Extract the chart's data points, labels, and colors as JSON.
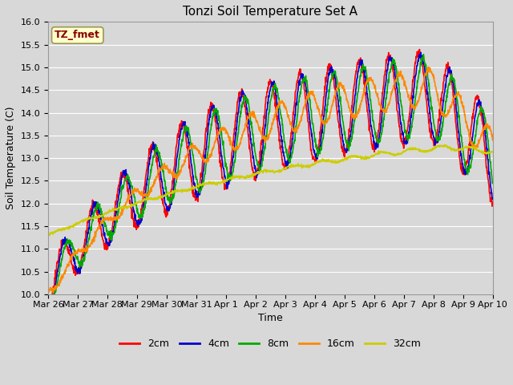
{
  "title": "Tonzi Soil Temperature Set A",
  "xlabel": "Time",
  "ylabel": "Soil Temperature (C)",
  "ylim": [
    10.0,
    16.0
  ],
  "yticks": [
    10.0,
    10.5,
    11.0,
    11.5,
    12.0,
    12.5,
    13.0,
    13.5,
    14.0,
    14.5,
    15.0,
    15.5,
    16.0
  ],
  "xtick_labels": [
    "Mar 26",
    "Mar 27",
    "Mar 28",
    "Mar 29",
    "Mar 30",
    "Mar 31",
    "Apr 1",
    "Apr 2",
    "Apr 3",
    "Apr 4",
    "Apr 5",
    "Apr 6",
    "Apr 7",
    "Apr 8",
    "Apr 9",
    "Apr 10"
  ],
  "series_colors": [
    "#ff0000",
    "#0000cc",
    "#00aa00",
    "#ff8800",
    "#cccc00"
  ],
  "series_labels": [
    "2cm",
    "4cm",
    "8cm",
    "16cm",
    "32cm"
  ],
  "background_color": "#d8d8d8",
  "plot_bg_color": "#d8d8d8",
  "annotation_text": "TZ_fmet",
  "annotation_color": "#880000",
  "annotation_bg": "#ffffcc",
  "line_width": 1.2,
  "grid_color": "#ffffff",
  "title_fontsize": 11,
  "axis_fontsize": 9,
  "tick_fontsize": 8
}
